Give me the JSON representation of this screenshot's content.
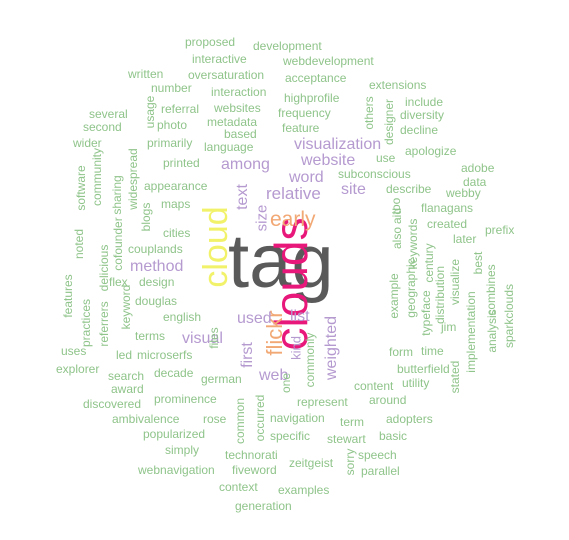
{
  "colors": {
    "dark": "#5a5a5a",
    "magenta": "#e8177a",
    "yellow": "#f2f26a",
    "orange": "#f2a874",
    "purple": "#b59ad0",
    "green": "#8fc48a"
  },
  "words": [
    {
      "text": "tag",
      "color": "dark"
    },
    {
      "text": "clouds",
      "color": "magenta"
    },
    {
      "text": "cloud",
      "color": "yellow"
    },
    {
      "text": "flickr",
      "color": "orange"
    },
    {
      "text": "early",
      "color": "orange"
    },
    {
      "text": "visualization",
      "color": "purple"
    },
    {
      "text": "website",
      "color": "purple"
    },
    {
      "text": "among",
      "color": "purple"
    },
    {
      "text": "relative",
      "color": "purple"
    },
    {
      "text": "word",
      "color": "purple"
    },
    {
      "text": "site",
      "color": "purple"
    },
    {
      "text": "text",
      "color": "purple"
    },
    {
      "text": "size",
      "color": "purple"
    },
    {
      "text": "method",
      "color": "purple"
    },
    {
      "text": "visual",
      "color": "purple"
    },
    {
      "text": "used",
      "color": "purple"
    },
    {
      "text": "list",
      "color": "purple"
    },
    {
      "text": "first",
      "color": "purple"
    },
    {
      "text": "web",
      "color": "purple"
    },
    {
      "text": "weighted",
      "color": "purple"
    },
    {
      "text": "kind",
      "color": "purple"
    },
    {
      "text": "proposed",
      "color": "green"
    },
    {
      "text": "development",
      "color": "green"
    },
    {
      "text": "interactive",
      "color": "green"
    },
    {
      "text": "webdevelopment",
      "color": "green"
    },
    {
      "text": "written",
      "color": "green"
    },
    {
      "text": "oversaturation",
      "color": "green"
    },
    {
      "text": "acceptance",
      "color": "green"
    },
    {
      "text": "number",
      "color": "green"
    },
    {
      "text": "interaction",
      "color": "green"
    },
    {
      "text": "extensions",
      "color": "green"
    },
    {
      "text": "highprofile",
      "color": "green"
    },
    {
      "text": "include",
      "color": "green"
    },
    {
      "text": "others",
      "color": "green"
    },
    {
      "text": "usage",
      "color": "green"
    },
    {
      "text": "referral",
      "color": "green"
    },
    {
      "text": "websites",
      "color": "green"
    },
    {
      "text": "frequency",
      "color": "green"
    },
    {
      "text": "several",
      "color": "green"
    },
    {
      "text": "metadata",
      "color": "green"
    },
    {
      "text": "designer",
      "color": "green"
    },
    {
      "text": "diversity",
      "color": "green"
    },
    {
      "text": "second",
      "color": "green"
    },
    {
      "text": "photo",
      "color": "green"
    },
    {
      "text": "feature",
      "color": "green"
    },
    {
      "text": "based",
      "color": "green"
    },
    {
      "text": "decline",
      "color": "green"
    },
    {
      "text": "wider",
      "color": "green"
    },
    {
      "text": "primarily",
      "color": "green"
    },
    {
      "text": "language",
      "color": "green"
    },
    {
      "text": "apologize",
      "color": "green"
    },
    {
      "text": "community",
      "color": "green"
    },
    {
      "text": "widespread",
      "color": "green"
    },
    {
      "text": "printed",
      "color": "green"
    },
    {
      "text": "use",
      "color": "green"
    },
    {
      "text": "adobe",
      "color": "green"
    },
    {
      "text": "subconscious",
      "color": "green"
    },
    {
      "text": "data",
      "color": "green"
    },
    {
      "text": "software",
      "color": "green"
    },
    {
      "text": "sharing",
      "color": "green"
    },
    {
      "text": "appearance",
      "color": "green"
    },
    {
      "text": "describe",
      "color": "green"
    },
    {
      "text": "webby",
      "color": "green"
    },
    {
      "text": "blogs",
      "color": "green"
    },
    {
      "text": "maps",
      "color": "green"
    },
    {
      "text": "flanagans",
      "color": "green"
    },
    {
      "text": "noted",
      "color": "green"
    },
    {
      "text": "cofounder",
      "color": "green"
    },
    {
      "text": "too",
      "color": "green"
    },
    {
      "text": "created",
      "color": "green"
    },
    {
      "text": "prefix",
      "color": "green"
    },
    {
      "text": "cities",
      "color": "green"
    },
    {
      "text": "delicious",
      "color": "green"
    },
    {
      "text": "also",
      "color": "green"
    },
    {
      "text": "later",
      "color": "green"
    },
    {
      "text": "couplands",
      "color": "green"
    },
    {
      "text": "aid",
      "color": "green"
    },
    {
      "text": "keywords",
      "color": "green"
    },
    {
      "text": "century",
      "color": "green"
    },
    {
      "text": "flex",
      "color": "green"
    },
    {
      "text": "design",
      "color": "green"
    },
    {
      "text": "geographic",
      "color": "green"
    },
    {
      "text": "visualize",
      "color": "green"
    },
    {
      "text": "best",
      "color": "green"
    },
    {
      "text": "combines",
      "color": "green"
    },
    {
      "text": "features",
      "color": "green"
    },
    {
      "text": "keyword",
      "color": "green"
    },
    {
      "text": "example",
      "color": "green"
    },
    {
      "text": "distribution",
      "color": "green"
    },
    {
      "text": "douglas",
      "color": "green"
    },
    {
      "text": "typeface",
      "color": "green"
    },
    {
      "text": "practices",
      "color": "green"
    },
    {
      "text": "english",
      "color": "green"
    },
    {
      "text": "jim",
      "color": "green"
    },
    {
      "text": "analysis",
      "color": "green"
    },
    {
      "text": "sparkclouds",
      "color": "green"
    },
    {
      "text": "referrers",
      "color": "green"
    },
    {
      "text": "terms",
      "color": "green"
    },
    {
      "text": "uses",
      "color": "green"
    },
    {
      "text": "files",
      "color": "green"
    },
    {
      "text": "time",
      "color": "green"
    },
    {
      "text": "commonly",
      "color": "green"
    },
    {
      "text": "form",
      "color": "green"
    },
    {
      "text": "led",
      "color": "green"
    },
    {
      "text": "microserfs",
      "color": "green"
    },
    {
      "text": "implementation",
      "color": "green"
    },
    {
      "text": "explorer",
      "color": "green"
    },
    {
      "text": "decade",
      "color": "green"
    },
    {
      "text": "butterfield",
      "color": "green"
    },
    {
      "text": "search",
      "color": "green"
    },
    {
      "text": "german",
      "color": "green"
    },
    {
      "text": "one",
      "color": "green"
    },
    {
      "text": "content",
      "color": "green"
    },
    {
      "text": "utility",
      "color": "green"
    },
    {
      "text": "award",
      "color": "green"
    },
    {
      "text": "stated",
      "color": "green"
    },
    {
      "text": "discovered",
      "color": "green"
    },
    {
      "text": "prominence",
      "color": "green"
    },
    {
      "text": "represent",
      "color": "green"
    },
    {
      "text": "around",
      "color": "green"
    },
    {
      "text": "ambivalence",
      "color": "green"
    },
    {
      "text": "rose",
      "color": "green"
    },
    {
      "text": "navigation",
      "color": "green"
    },
    {
      "text": "term",
      "color": "green"
    },
    {
      "text": "adopters",
      "color": "green"
    },
    {
      "text": "common",
      "color": "green"
    },
    {
      "text": "occurred",
      "color": "green"
    },
    {
      "text": "popularized",
      "color": "green"
    },
    {
      "text": "specific",
      "color": "green"
    },
    {
      "text": "stewart",
      "color": "green"
    },
    {
      "text": "basic",
      "color": "green"
    },
    {
      "text": "simply",
      "color": "green"
    },
    {
      "text": "technorati",
      "color": "green"
    },
    {
      "text": "speech",
      "color": "green"
    },
    {
      "text": "zeitgeist",
      "color": "green"
    },
    {
      "text": "sorry",
      "color": "green"
    },
    {
      "text": "parallel",
      "color": "green"
    },
    {
      "text": "webnavigation",
      "color": "green"
    },
    {
      "text": "fiveword",
      "color": "green"
    },
    {
      "text": "context",
      "color": "green"
    },
    {
      "text": "examples",
      "color": "green"
    },
    {
      "text": "generation",
      "color": "green"
    }
  ]
}
